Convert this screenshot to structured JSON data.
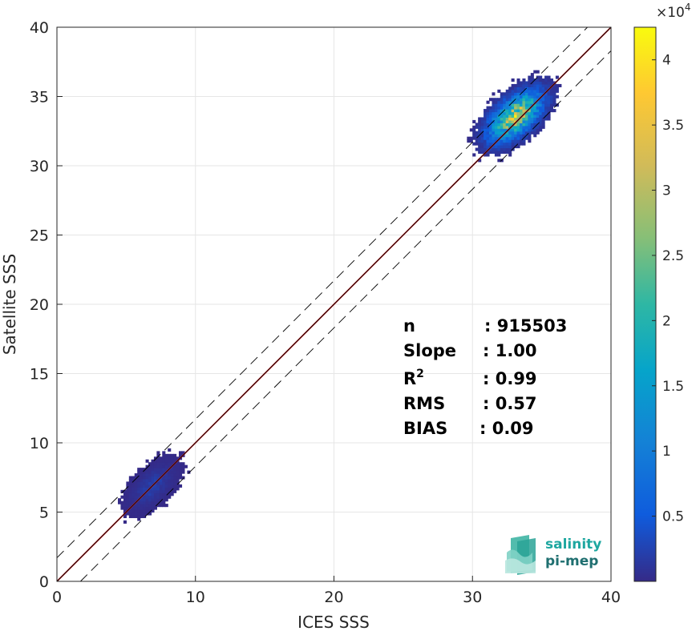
{
  "chart_data": {
    "type": "heatmap",
    "title": "",
    "xlabel": "ICES SSS",
    "ylabel": "Satellite SSS",
    "xlim": [
      0,
      40
    ],
    "ylim": [
      0,
      40
    ],
    "xticks": [
      "0",
      "10",
      "20",
      "30",
      "40"
    ],
    "yticks": [
      "0",
      "5",
      "10",
      "15",
      "20",
      "25",
      "30",
      "35",
      "40"
    ],
    "grid": true,
    "colorbar": {
      "range": [
        0,
        42500
      ],
      "multiplier_label": "×10",
      "multiplier_exponent": "4",
      "ticks": [
        {
          "value": 5000,
          "label": "0.5"
        },
        {
          "value": 10000,
          "label": "1"
        },
        {
          "value": 15000,
          "label": "1.5"
        },
        {
          "value": 20000,
          "label": "2"
        },
        {
          "value": 25000,
          "label": "2.5"
        },
        {
          "value": 30000,
          "label": "3"
        },
        {
          "value": 35000,
          "label": "3.5"
        },
        {
          "value": 40000,
          "label": "4"
        }
      ],
      "colormap": "parula"
    },
    "lines": [
      {
        "kind": "regression",
        "color": "#d62728",
        "slope": 1.0,
        "intercept": 0.0
      },
      {
        "kind": "identity",
        "color": "#000000",
        "slope": 1.0,
        "intercept": 0.0
      },
      {
        "kind": "upper-bound",
        "style": "dashed",
        "color": "#000000",
        "slope": 1.0,
        "intercept": 1.7
      },
      {
        "kind": "lower-bound",
        "style": "dashed",
        "color": "#000000",
        "slope": 1.0,
        "intercept": -1.7
      }
    ],
    "density_clusters": [
      {
        "x_center": 33.0,
        "y_center": 33.5,
        "x_spread": 1.6,
        "y_spread": 1.5,
        "peak": 42000
      },
      {
        "x_center": 6.8,
        "y_center": 6.8,
        "x_spread": 1.2,
        "y_spread": 1.2,
        "peak": 3000
      }
    ],
    "stats": [
      {
        "key": "n",
        "value": ": 915503"
      },
      {
        "key": "Slope",
        "value": ": 1.00"
      },
      {
        "key": "R",
        "sup": "2",
        "value": ": 0.99"
      },
      {
        "key": "RMS",
        "value": ": 0.57"
      },
      {
        "key": "BIAS",
        "value": ": 0.09"
      }
    ]
  },
  "logo": {
    "line1": "salinity",
    "line2": "pi-mep",
    "color1": "#1ea7a0",
    "color2": "#1f6f70"
  }
}
